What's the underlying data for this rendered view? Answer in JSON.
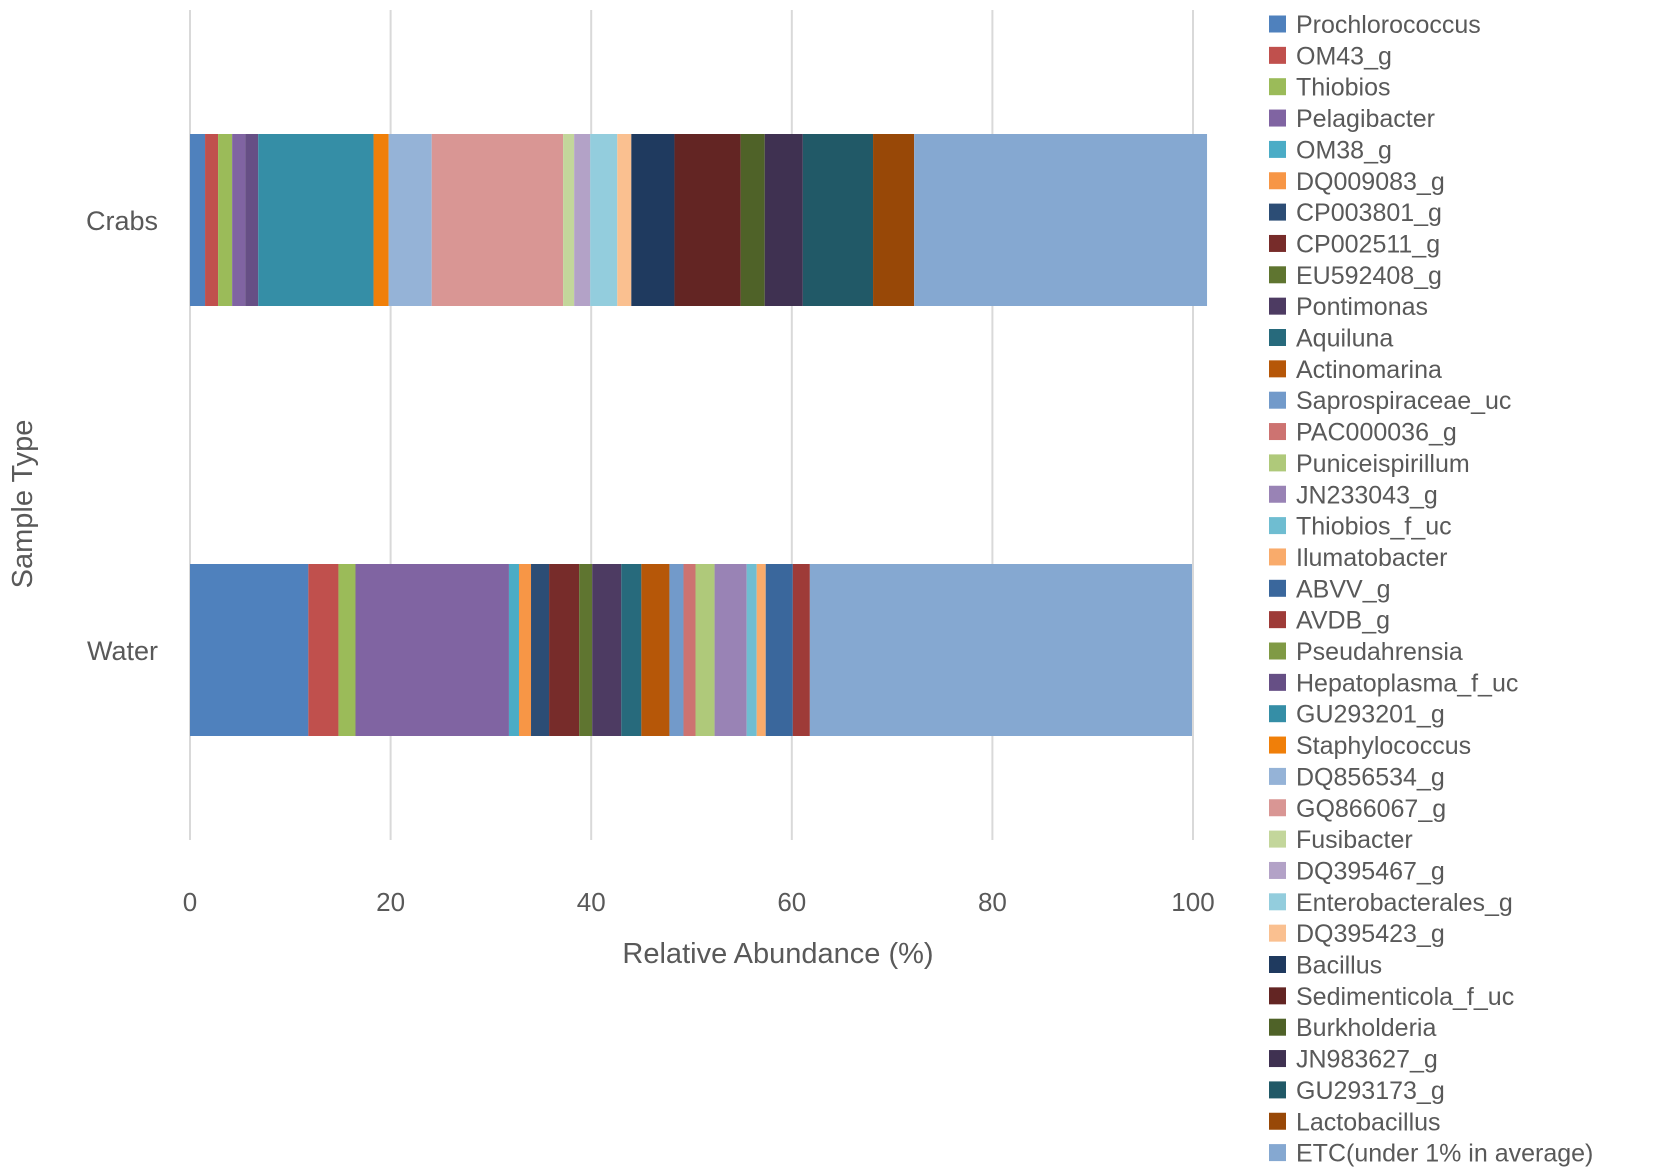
{
  "chart_data": {
    "type": "bar",
    "orientation": "horizontal",
    "stacked": true,
    "title": "",
    "xlabel": "Relative Abundance (%)",
    "ylabel": "Sample Type",
    "xlim": [
      0,
      100
    ],
    "xticks": [
      0,
      20,
      40,
      60,
      80,
      100
    ],
    "grid": "vertical",
    "legend": "right",
    "categories": [
      "Crabs",
      "Water"
    ],
    "series": [
      {
        "name": "Prochlorococcus",
        "color": "#4F81BD",
        "values": [
          1.5,
          11.8
        ]
      },
      {
        "name": "OM43_g",
        "color": "#C0504D",
        "values": [
          1.3,
          3.0
        ]
      },
      {
        "name": "Thiobios",
        "color": "#9BBB59",
        "values": [
          1.4,
          1.7
        ]
      },
      {
        "name": "Pelagibacter",
        "color": "#8064A2",
        "values": [
          1.3,
          15.3
        ]
      },
      {
        "name": "OM38_g",
        "color": "#4BACC6",
        "values": [
          0,
          1.0
        ]
      },
      {
        "name": "DQ009083_g",
        "color": "#F79646",
        "values": [
          0,
          1.2
        ]
      },
      {
        "name": "CP003801_g",
        "color": "#2C4D75",
        "values": [
          0,
          1.8
        ]
      },
      {
        "name": "CP002511_g",
        "color": "#772C2A",
        "values": [
          0,
          3.0
        ]
      },
      {
        "name": "EU592408_g",
        "color": "#5F7530",
        "values": [
          0,
          1.3
        ]
      },
      {
        "name": "Pontimonas",
        "color": "#4D3B62",
        "values": [
          0,
          2.9
        ]
      },
      {
        "name": "Aquiluna",
        "color": "#276A7C",
        "values": [
          0,
          2.0
        ]
      },
      {
        "name": "Actinomarina",
        "color": "#B65708",
        "values": [
          0,
          2.8
        ]
      },
      {
        "name": "Saprospiraceae_uc",
        "color": "#729ACA",
        "values": [
          0,
          1.4
        ]
      },
      {
        "name": "PAC000036_g",
        "color": "#CD7371",
        "values": [
          0,
          1.2
        ]
      },
      {
        "name": "Puniceispirillum",
        "color": "#AFC97A",
        "values": [
          0,
          1.9
        ]
      },
      {
        "name": "JN233043_g",
        "color": "#9983B5",
        "values": [
          0,
          3.2
        ]
      },
      {
        "name": "Thiobios_f_uc",
        "color": "#6FBDD1",
        "values": [
          0,
          1.0
        ]
      },
      {
        "name": "Ilumatobacter",
        "color": "#F9AB6B",
        "values": [
          0,
          0.9
        ]
      },
      {
        "name": "ABVV_g",
        "color": "#3A679C",
        "values": [
          0,
          2.7
        ]
      },
      {
        "name": "AVDB_g",
        "color": "#9E3B38",
        "values": [
          0,
          1.7
        ]
      },
      {
        "name": "Pseudahrensia",
        "color": "#809A45",
        "values": [
          0,
          0
        ]
      },
      {
        "name": "Hepatoplasma_f_uc",
        "color": "#664F85",
        "values": [
          1.3,
          0
        ]
      },
      {
        "name": "GU293201_g",
        "color": "#358EA6",
        "values": [
          11.5,
          0
        ]
      },
      {
        "name": "Staphylococcus",
        "color": "#F07F09",
        "values": [
          1.5,
          0
        ]
      },
      {
        "name": "DQ856534_g",
        "color": "#95B3D7",
        "values": [
          4.3,
          0
        ]
      },
      {
        "name": "GQ866067_g",
        "color": "#D99694",
        "values": [
          13.1,
          0
        ]
      },
      {
        "name": "Fusibacter",
        "color": "#C3D69B",
        "values": [
          1.1,
          0
        ]
      },
      {
        "name": "DQ395467_g",
        "color": "#B3A2C7",
        "values": [
          1.6,
          0
        ]
      },
      {
        "name": "Enterobacterales_g",
        "color": "#93CDDD",
        "values": [
          2.7,
          0
        ]
      },
      {
        "name": "DQ395423_g",
        "color": "#FAC090",
        "values": [
          1.4,
          0
        ]
      },
      {
        "name": "Bacillus",
        "color": "#1F3A5F",
        "values": [
          4.3,
          0
        ]
      },
      {
        "name": "Sedimenticola_f_uc",
        "color": "#632523",
        "values": [
          6.6,
          0
        ]
      },
      {
        "name": "Burkholderia",
        "color": "#4F6228",
        "values": [
          2.4,
          0
        ]
      },
      {
        "name": "JN983627_g",
        "color": "#3F3151",
        "values": [
          3.8,
          0
        ]
      },
      {
        "name": "GU293173_g",
        "color": "#215967",
        "values": [
          7.0,
          0
        ]
      },
      {
        "name": "Lactobacillus",
        "color": "#984807",
        "values": [
          4.1,
          0
        ]
      },
      {
        "name": "ETC(under 1% in average)",
        "color": "#85A8D1",
        "values": [
          29.2,
          38.1
        ]
      }
    ]
  }
}
